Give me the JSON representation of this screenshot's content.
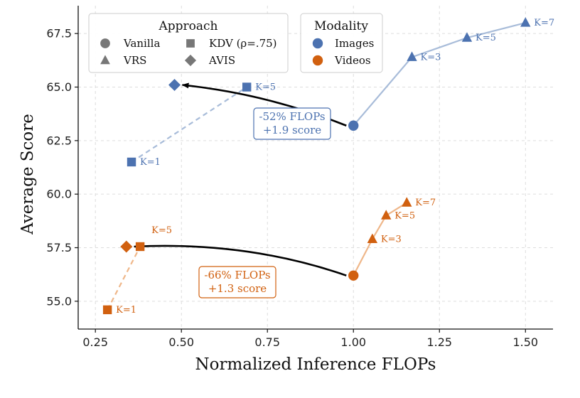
{
  "colors": {
    "images": "#4c72b0",
    "images_line": "#a8bcd9",
    "videos": "#d1600f",
    "videos_line": "#efb78a",
    "grid": "#dddddd",
    "arrow": "#000000",
    "legend_gray": "#777777"
  },
  "chart_data": {
    "type": "scatter",
    "xlabel": "Normalized Inference FLOPs",
    "ylabel": "Average Score",
    "xlim": [
      0.2,
      1.58
    ],
    "ylim": [
      53.7,
      68.8
    ],
    "xticks": [
      0.25,
      0.5,
      0.75,
      1.0,
      1.25,
      1.5
    ],
    "xtick_labels": [
      "0.25",
      "0.50",
      "0.75",
      "1.00",
      "1.25",
      "1.50"
    ],
    "yticks": [
      55.0,
      57.5,
      60.0,
      62.5,
      65.0,
      67.5
    ],
    "ytick_labels": [
      "55.0",
      "57.5",
      "60.0",
      "62.5",
      "65.0",
      "67.5"
    ],
    "grid": true,
    "series": [
      {
        "name": "Images",
        "modality": "images",
        "points": [
          {
            "approach": "Vanilla",
            "x": 1.0,
            "y": 63.2,
            "label": ""
          },
          {
            "approach": "VRS",
            "x": 1.17,
            "y": 66.4,
            "label": "K=3"
          },
          {
            "approach": "VRS",
            "x": 1.33,
            "y": 67.3,
            "label": "K=5"
          },
          {
            "approach": "VRS",
            "x": 1.5,
            "y": 68.0,
            "label": "K=7"
          },
          {
            "approach": "KDV",
            "x": 0.355,
            "y": 61.5,
            "label": "K=1"
          },
          {
            "approach": "KDV",
            "x": 0.69,
            "y": 65.0,
            "label": "K=5"
          },
          {
            "approach": "AVIS",
            "x": 0.48,
            "y": 65.1,
            "label": ""
          }
        ]
      },
      {
        "name": "Videos",
        "modality": "videos",
        "points": [
          {
            "approach": "Vanilla",
            "x": 1.0,
            "y": 56.2,
            "label": ""
          },
          {
            "approach": "VRS",
            "x": 1.055,
            "y": 57.9,
            "label": "K=3"
          },
          {
            "approach": "VRS",
            "x": 1.095,
            "y": 59.0,
            "label": "K=5"
          },
          {
            "approach": "VRS",
            "x": 1.155,
            "y": 59.6,
            "label": "K=7"
          },
          {
            "approach": "KDV",
            "x": 0.285,
            "y": 54.6,
            "label": "K=1"
          },
          {
            "approach": "KDV",
            "x": 0.38,
            "y": 57.55,
            "label": "K=5"
          },
          {
            "approach": "AVIS",
            "x": 0.34,
            "y": 57.55,
            "label": ""
          }
        ]
      }
    ],
    "annotations": [
      {
        "modality": "images",
        "lines": [
          "-52% FLOPs",
          "+1.9 score"
        ],
        "from": [
          1.0,
          63.2
        ],
        "to": [
          0.48,
          65.1
        ]
      },
      {
        "modality": "videos",
        "lines": [
          "-66% FLOPs",
          "+1.3 score"
        ],
        "from": [
          1.0,
          56.2
        ],
        "to": [
          0.34,
          57.55
        ]
      }
    ],
    "legends": {
      "approach": {
        "title": "Approach",
        "items": [
          {
            "label": "Vanilla",
            "marker": "circle"
          },
          {
            "label": "VRS",
            "marker": "triangle"
          },
          {
            "label": "KDV (ρ=.75)",
            "marker": "square"
          },
          {
            "label": "AVIS",
            "marker": "diamond"
          }
        ]
      },
      "modality": {
        "title": "Modality",
        "items": [
          {
            "label": "Images",
            "modality": "images"
          },
          {
            "label": "Videos",
            "modality": "videos"
          }
        ]
      }
    }
  }
}
